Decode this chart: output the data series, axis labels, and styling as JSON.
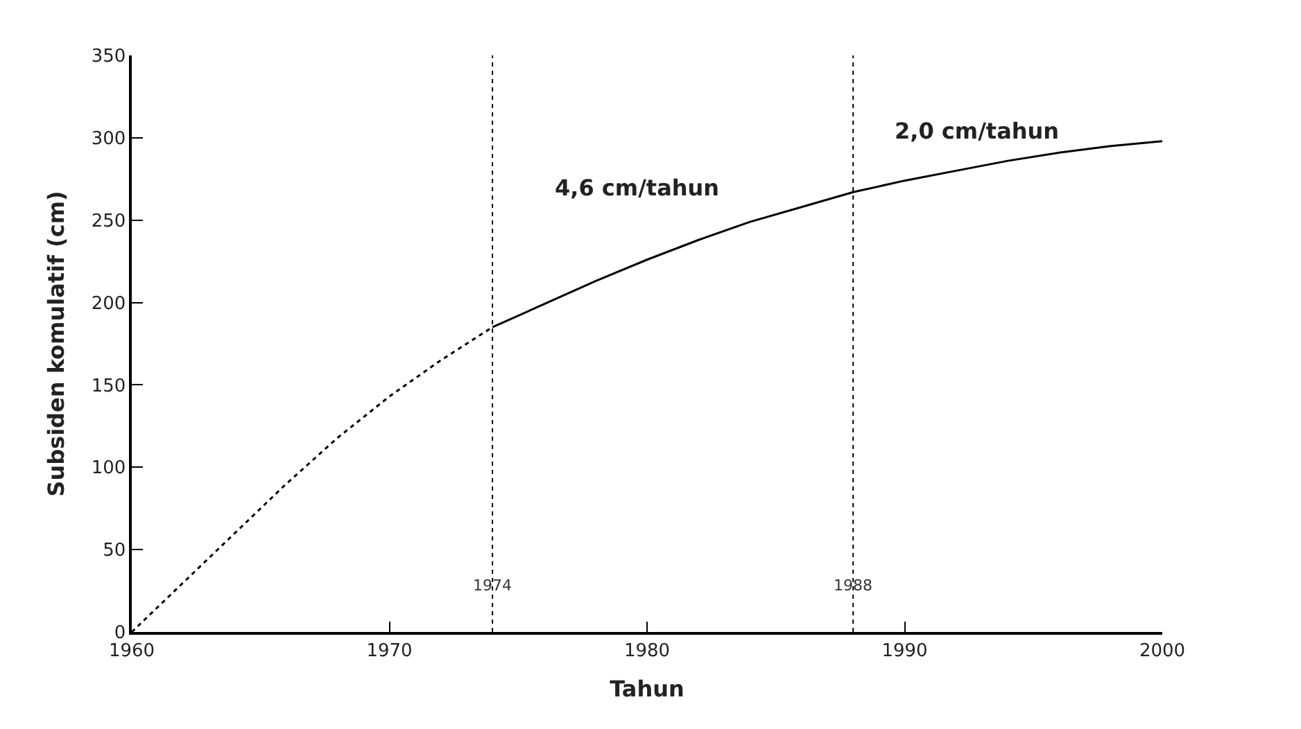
{
  "chart_data": {
    "type": "line",
    "xlabel": "Tahun",
    "ylabel": "Subsiden komulatif (cm)",
    "xlim": [
      1960,
      2000
    ],
    "xticks": [
      1960,
      1970,
      1980,
      1990,
      2000
    ],
    "ylim": [
      0,
      350
    ],
    "yticks": [
      0,
      50,
      100,
      150,
      200,
      250,
      300,
      350
    ],
    "marker": "none",
    "series": [
      {
        "color": "#000000",
        "line_style": "dotted",
        "x": [
          1960,
          1962,
          1964,
          1966,
          1968,
          1970,
          1972,
          1974
        ],
        "values": [
          0,
          30,
          60,
          90,
          118,
          143,
          165,
          185
        ]
      },
      {
        "color": "#000000",
        "line_style": "solid",
        "x": [
          1974,
          1976,
          1978,
          1980,
          1982,
          1984,
          1986,
          1988,
          1990,
          1992,
          1994,
          1996,
          1998,
          2000
        ],
        "values": [
          185,
          199,
          213,
          226,
          238,
          249,
          258,
          267,
          274,
          280,
          286,
          291,
          295,
          298
        ]
      }
    ],
    "ref_lines": [
      {
        "axis": "x",
        "value": 1974,
        "label": "1974",
        "color": "#000000",
        "line_style": "dotted"
      },
      {
        "axis": "x",
        "value": 1988,
        "label": "1988",
        "color": "#000000",
        "line_style": "dotted"
      }
    ],
    "annotations": [
      "4,6 cm/tahun",
      "2,0 cm/tahun"
    ]
  }
}
